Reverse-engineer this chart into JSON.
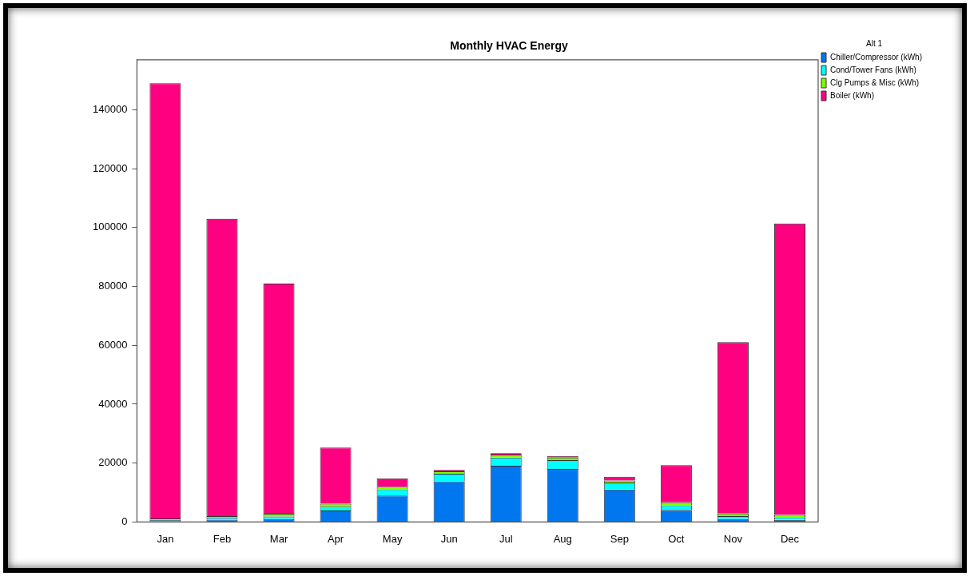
{
  "chart_data": {
    "type": "bar",
    "title": "Monthly HVAC Energy",
    "legend_title": "Alt 1",
    "stacked": true,
    "legend": "top right",
    "grid": false,
    "categories": [
      "Jan",
      "Feb",
      "Mar",
      "Apr",
      "May",
      "Jun",
      "Jul",
      "Aug",
      "Sep",
      "Oct",
      "Nov",
      "Dec"
    ],
    "ylim": [
      0,
      157000
    ],
    "yticks": [
      0,
      20000,
      40000,
      60000,
      80000,
      100000,
      120000,
      140000
    ],
    "series": [
      {
        "name": "Chiller/Compressor (kWh)",
        "color": "#0077ee",
        "values": [
          null,
          800,
          1000,
          3900,
          9000,
          13800,
          19100,
          18000,
          11000,
          4100,
          1000,
          700
        ]
      },
      {
        "name": "Cond/Tower Fans (kWh)",
        "color": "#00ffff",
        "values": [
          700,
          600,
          900,
          1300,
          2100,
          2600,
          2800,
          3000,
          2400,
          1600,
          1000,
          900
        ]
      },
      {
        "name": "Clg Pumps & Misc (kWh)",
        "color": "#80ff00",
        "values": [
          500,
          600,
          900,
          1000,
          900,
          800,
          1000,
          900,
          700,
          1000,
          900,
          800
        ]
      },
      {
        "name": "Boiler (kWh)",
        "color": "#ff0080",
        "values": [
          147800,
          101000,
          78200,
          19100,
          2800,
          500,
          500,
          500,
          1300,
          12600,
          58200,
          99000
        ]
      }
    ]
  }
}
